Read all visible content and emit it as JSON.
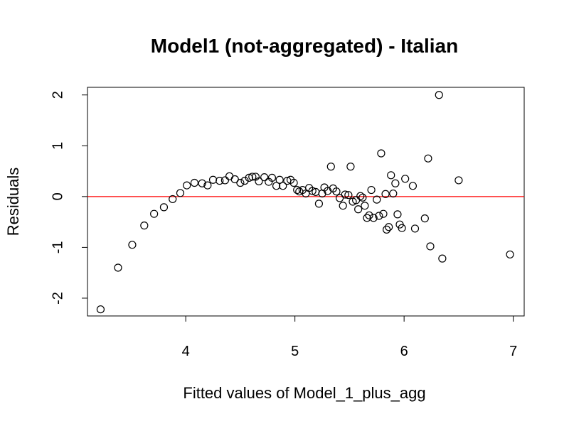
{
  "chart_data": {
    "type": "scatter",
    "title": "Model1 (not-aggregated) - Italian",
    "xlabel": "Fitted values of Model_1_plus_agg",
    "ylabel": "Residuals",
    "xlim": [
      3.1,
      7.1
    ],
    "ylim": [
      -2.35,
      2.15
    ],
    "xticks": [
      4,
      5,
      6,
      7
    ],
    "yticks": [
      -2,
      -1,
      0,
      1,
      2
    ],
    "reference_line": {
      "y": 0,
      "color": "#ff0000"
    },
    "point_style": {
      "shape": "open-circle",
      "color": "#000000"
    },
    "series": [
      {
        "points": [
          [
            3.22,
            -2.22
          ],
          [
            3.38,
            -1.4
          ],
          [
            3.51,
            -0.95
          ],
          [
            3.62,
            -0.57
          ],
          [
            3.71,
            -0.34
          ],
          [
            3.8,
            -0.21
          ],
          [
            3.88,
            -0.05
          ],
          [
            3.95,
            0.07
          ],
          [
            4.01,
            0.22
          ],
          [
            4.08,
            0.27
          ],
          [
            4.15,
            0.26
          ],
          [
            4.2,
            0.22
          ],
          [
            4.25,
            0.33
          ],
          [
            4.31,
            0.31
          ],
          [
            4.36,
            0.32
          ],
          [
            4.4,
            0.4
          ],
          [
            4.45,
            0.34
          ],
          [
            4.5,
            0.27
          ],
          [
            4.54,
            0.31
          ],
          [
            4.58,
            0.37
          ],
          [
            4.61,
            0.39
          ],
          [
            4.64,
            0.39
          ],
          [
            4.67,
            0.3
          ],
          [
            4.72,
            0.38
          ],
          [
            4.76,
            0.29
          ],
          [
            4.79,
            0.37
          ],
          [
            4.83,
            0.21
          ],
          [
            4.86,
            0.33
          ],
          [
            4.89,
            0.21
          ],
          [
            4.93,
            0.31
          ],
          [
            4.96,
            0.33
          ],
          [
            4.99,
            0.27
          ],
          [
            5.02,
            0.13
          ],
          [
            5.04,
            0.1
          ],
          [
            5.07,
            0.13
          ],
          [
            5.1,
            0.06
          ],
          [
            5.13,
            0.17
          ],
          [
            5.16,
            0.11
          ],
          [
            5.19,
            0.09
          ],
          [
            5.22,
            -0.14
          ],
          [
            5.25,
            0.06
          ],
          [
            5.27,
            0.18
          ],
          [
            5.3,
            0.11
          ],
          [
            5.33,
            0.59
          ],
          [
            5.35,
            0.16
          ],
          [
            5.38,
            0.1
          ],
          [
            5.41,
            -0.03
          ],
          [
            5.44,
            -0.18
          ],
          [
            5.46,
            0.04
          ],
          [
            5.49,
            0.03
          ],
          [
            5.51,
            0.59
          ],
          [
            5.53,
            -0.1
          ],
          [
            5.56,
            -0.07
          ],
          [
            5.58,
            -0.25
          ],
          [
            5.6,
            0.01
          ],
          [
            5.62,
            -0.02
          ],
          [
            5.64,
            -0.18
          ],
          [
            5.66,
            -0.42
          ],
          [
            5.68,
            -0.37
          ],
          [
            5.7,
            0.13
          ],
          [
            5.72,
            -0.42
          ],
          [
            5.75,
            -0.06
          ],
          [
            5.77,
            -0.38
          ],
          [
            5.79,
            0.85
          ],
          [
            5.81,
            -0.34
          ],
          [
            5.83,
            0.05
          ],
          [
            5.84,
            -0.65
          ],
          [
            5.86,
            -0.6
          ],
          [
            5.88,
            0.42
          ],
          [
            5.9,
            0.06
          ],
          [
            5.92,
            0.26
          ],
          [
            5.94,
            -0.35
          ],
          [
            5.96,
            -0.55
          ],
          [
            5.98,
            -0.62
          ],
          [
            6.01,
            0.35
          ],
          [
            6.08,
            0.21
          ],
          [
            6.1,
            -0.63
          ],
          [
            6.19,
            -0.43
          ],
          [
            6.22,
            0.75
          ],
          [
            6.24,
            -0.98
          ],
          [
            6.32,
            2.0
          ],
          [
            6.35,
            -1.22
          ],
          [
            6.5,
            0.32
          ],
          [
            6.97,
            -1.14
          ]
        ]
      }
    ]
  }
}
